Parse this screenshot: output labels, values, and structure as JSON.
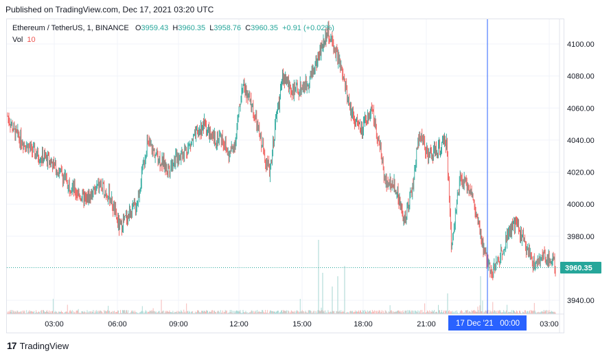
{
  "header": {
    "published": "Published on TradingView.com, Dec 17, 2021 03:20 UTC"
  },
  "legend": {
    "symbol": "Ethereum / TetherUS, 1, BINANCE",
    "open_label": "O",
    "open": "3959.43",
    "high_label": "H",
    "high": "3960.35",
    "low_label": "L",
    "low": "3958.76",
    "close_label": "C",
    "close": "3960.35",
    "change": "+0.91 (+0.02%)",
    "vol_label": "Vol",
    "vol": "10"
  },
  "price_axis": {
    "ticks": [
      "4100.00",
      "4080.00",
      "4060.00",
      "4040.00",
      "4020.00",
      "4000.00",
      "3980.00",
      "3940.00"
    ],
    "last_price": "3960.35"
  },
  "time_axis": {
    "ticks": [
      "03:00",
      "06:00",
      "09:00",
      "12:00",
      "15:00",
      "18:00",
      "21:00",
      "03:00"
    ],
    "crosshair_label": "17 Dec '21   00:00"
  },
  "footer": {
    "brand": "TradingView"
  },
  "colors": {
    "up": "#26a69a",
    "down": "#ef5350",
    "crosshair": "#2962ff",
    "last_price_bg": "#26a69a"
  },
  "chart_data": {
    "type": "candlestick",
    "ylim": [
      3932,
      4114
    ],
    "key_path": [
      [
        0,
        4055
      ],
      [
        10,
        4045
      ],
      [
        25,
        4038
      ],
      [
        45,
        4030
      ],
      [
        60,
        4028
      ],
      [
        80,
        4018
      ],
      [
        95,
        4010
      ],
      [
        115,
        4002
      ],
      [
        135,
        4012
      ],
      [
        150,
        4005
      ],
      [
        165,
        3985
      ],
      [
        175,
        3992
      ],
      [
        190,
        4000
      ],
      [
        205,
        4038
      ],
      [
        220,
        4030
      ],
      [
        235,
        4022
      ],
      [
        250,
        4030
      ],
      [
        265,
        4035
      ],
      [
        280,
        4045
      ],
      [
        290,
        4050
      ],
      [
        300,
        4040
      ],
      [
        315,
        4042
      ],
      [
        325,
        4030
      ],
      [
        335,
        4040
      ],
      [
        345,
        4075
      ],
      [
        360,
        4060
      ],
      [
        372,
        4040
      ],
      [
        385,
        4020
      ],
      [
        395,
        4055
      ],
      [
        405,
        4080
      ],
      [
        420,
        4070
      ],
      [
        440,
        4075
      ],
      [
        455,
        4090
      ],
      [
        470,
        4108
      ],
      [
        485,
        4092
      ],
      [
        495,
        4075
      ],
      [
        505,
        4058
      ],
      [
        520,
        4045
      ],
      [
        535,
        4060
      ],
      [
        545,
        4040
      ],
      [
        555,
        4015
      ],
      [
        570,
        4012
      ],
      [
        582,
        3990
      ],
      [
        595,
        4010
      ],
      [
        605,
        4045
      ],
      [
        620,
        4030
      ],
      [
        635,
        4035
      ],
      [
        645,
        4040
      ],
      [
        652,
        3975
      ],
      [
        665,
        4015
      ],
      [
        680,
        4010
      ],
      [
        690,
        3990
      ],
      [
        700,
        3970
      ],
      [
        712,
        3958
      ],
      [
        722,
        3965
      ],
      [
        735,
        3982
      ],
      [
        748,
        3988
      ],
      [
        760,
        3975
      ],
      [
        775,
        3962
      ],
      [
        790,
        3968
      ],
      [
        800,
        3965
      ],
      [
        806,
        3960
      ]
    ]
  }
}
